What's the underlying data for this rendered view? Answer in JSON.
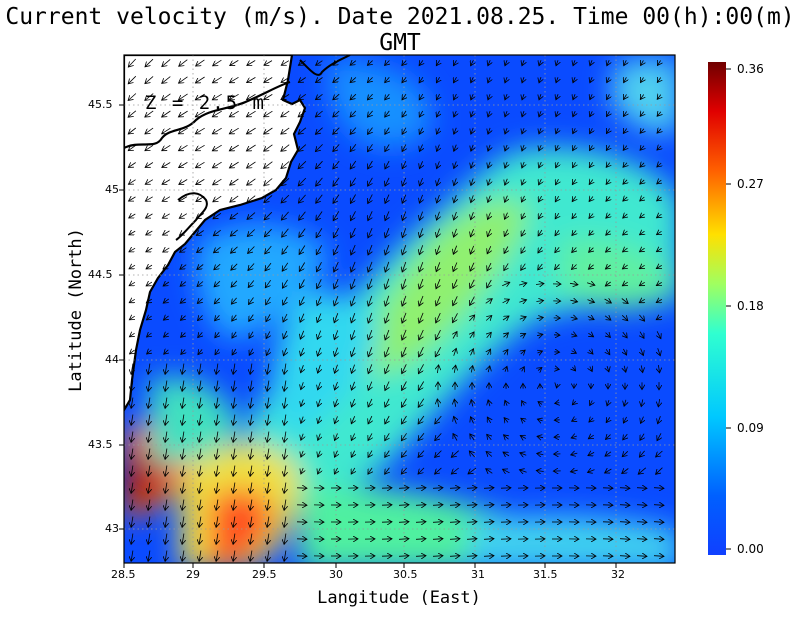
{
  "title": "Current velocity (m/s). Date 2021.08.25. Time 00(h):00(m) GMT",
  "depth_label": "Z = 2.5 m",
  "xaxis": {
    "label": "Langitude (East)",
    "ticks": [
      "28.5",
      "29",
      "29.5",
      "30",
      "30.5",
      "31",
      "31.5",
      "32"
    ]
  },
  "yaxis": {
    "label": "Latitude (North)",
    "ticks": [
      "45.5",
      "45",
      "44.5",
      "44",
      "43.5",
      "43"
    ]
  },
  "colorbar": {
    "ticks": [
      "0.36",
      "0.27",
      "0.18",
      "0.09",
      "0.00"
    ],
    "colors": [
      "#7f0000",
      "#ff2000",
      "#ffd000",
      "#80ff80",
      "#00e0ff",
      "#0050ff",
      "#1050ff"
    ]
  },
  "map": {
    "background": "#0a4bff",
    "land": "#ffffff",
    "grid": "dotted"
  }
}
